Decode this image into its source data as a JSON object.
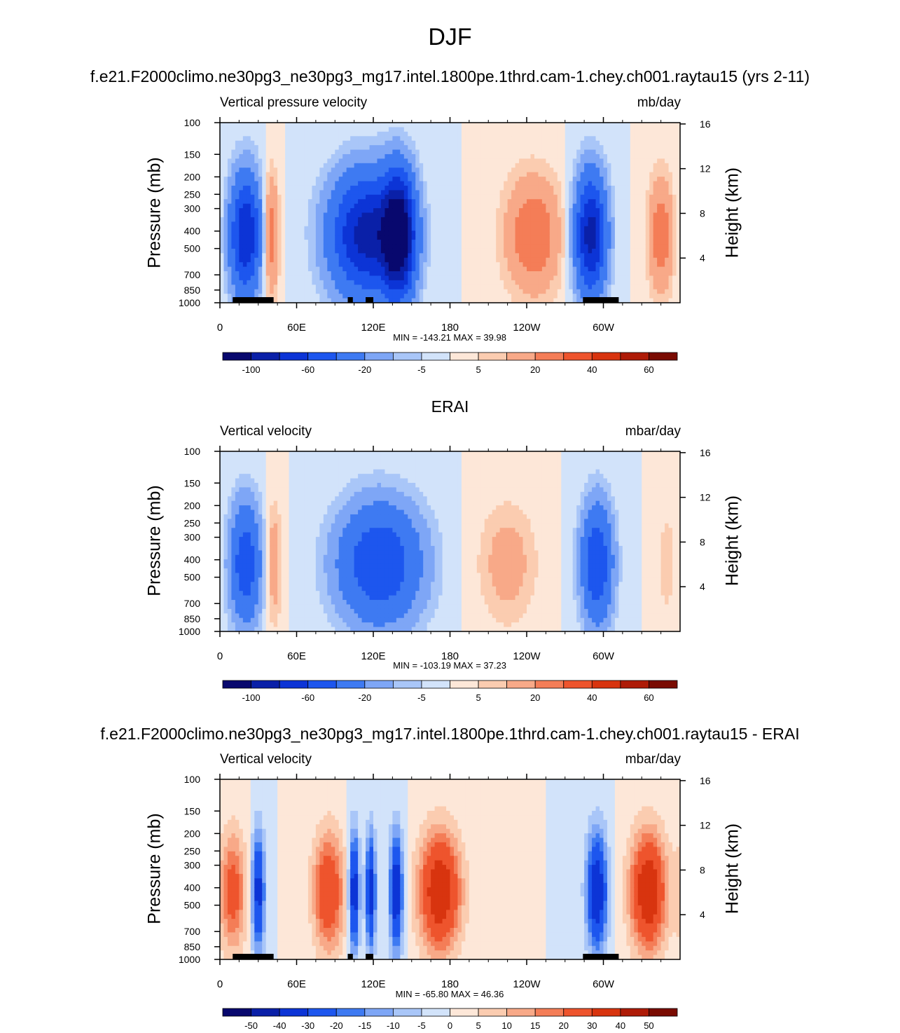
{
  "title": "DJF",
  "colors": {
    "cold": [
      "#08086e",
      "#0a20a8",
      "#0c34d6",
      "#1d56ee",
      "#3e7af2",
      "#7ea6f6",
      "#a9c6f8",
      "#d2e3fa"
    ],
    "warm": [
      "#fde7d8",
      "#fbccb0",
      "#f8a988",
      "#f47d57",
      "#ee542d",
      "#d8340f",
      "#ae1b07",
      "#7a0b02"
    ],
    "land": "#000000"
  },
  "chart_data": [
    {
      "type": "heatmap",
      "panel_title": "f.e21.F2000climo.ne30pg3_ne30pg3_mg17.intel.1800pe.1thrd.cam-1.chey.ch001.raytau15 (yrs 2-11)",
      "left_label": "Vertical pressure velocity",
      "units": "mb/day",
      "ylabel": "Pressure (mb)",
      "ylabel_right": "Height (km)",
      "x_ticks": [
        "0",
        "60E",
        "120E",
        "180",
        "120W",
        "60W"
      ],
      "y_ticks": [
        "100",
        "150",
        "200",
        "250",
        "300",
        "400",
        "500",
        "700",
        "850",
        "1000"
      ],
      "y_ticks_right": [
        "16",
        "12",
        "8",
        "4"
      ],
      "y_scale": "log",
      "xlim": [
        0,
        360
      ],
      "ylim": [
        1000,
        100
      ],
      "stats": "MIN = -143.21  MAX =  39.98",
      "colorbar_labels": [
        "-100",
        "-60",
        "-20",
        "-5",
        "5",
        "20",
        "40",
        "60"
      ],
      "features": [
        {
          "lon": 20,
          "width": 12,
          "peak": -80
        },
        {
          "lon": 40,
          "width": 6,
          "peak": 30
        },
        {
          "lon": 115,
          "width": 28,
          "peak": -90
        },
        {
          "lon": 140,
          "width": 12,
          "peak": -110
        },
        {
          "lon": 245,
          "width": 22,
          "peak": 30
        },
        {
          "lon": 290,
          "width": 12,
          "peak": -90
        },
        {
          "lon": 345,
          "width": 10,
          "peak": 28
        }
      ]
    },
    {
      "type": "heatmap",
      "panel_title": "ERAI",
      "left_label": "Vertical velocity",
      "units": "mbar/day",
      "ylabel": "Pressure (mb)",
      "ylabel_right": "Height (km)",
      "x_ticks": [
        "0",
        "60E",
        "120E",
        "180",
        "120W",
        "60W"
      ],
      "y_ticks": [
        "100",
        "150",
        "200",
        "250",
        "300",
        "400",
        "500",
        "700",
        "850",
        "1000"
      ],
      "y_ticks_right": [
        "16",
        "12",
        "8",
        "4"
      ],
      "y_scale": "log",
      "xlim": [
        0,
        360
      ],
      "ylim": [
        1000,
        100
      ],
      "stats": "MIN = -103.19  MAX =  37.23",
      "colorbar_labels": [
        "-100",
        "-60",
        "-20",
        "-5",
        "5",
        "20",
        "40",
        "60"
      ],
      "features": [
        {
          "lon": 20,
          "width": 12,
          "peak": -55
        },
        {
          "lon": 42,
          "width": 6,
          "peak": 18
        },
        {
          "lon": 125,
          "width": 32,
          "peak": -60
        },
        {
          "lon": 225,
          "width": 22,
          "peak": 15
        },
        {
          "lon": 295,
          "width": 12,
          "peak": -60
        },
        {
          "lon": 350,
          "width": 8,
          "peak": 8
        }
      ]
    },
    {
      "type": "heatmap",
      "panel_title": "f.e21.F2000climo.ne30pg3_ne30pg3_mg17.intel.1800pe.1thrd.cam-1.chey.ch001.raytau15 - ERAI",
      "left_label": "Vertical velocity",
      "units": "mbar/day",
      "ylabel": "Pressure (mb)",
      "ylabel_right": "Height (km)",
      "x_ticks": [
        "0",
        "60E",
        "120E",
        "180",
        "120W",
        "60W"
      ],
      "y_ticks": [
        "100",
        "150",
        "200",
        "250",
        "300",
        "400",
        "500",
        "700",
        "850",
        "1000"
      ],
      "y_ticks_right": [
        "16",
        "12",
        "8",
        "4"
      ],
      "y_scale": "log",
      "xlim": [
        0,
        360
      ],
      "ylim": [
        1000,
        100
      ],
      "stats": "MIN = -65.80  MAX =  46.36",
      "colorbar_labels": [
        "-50",
        "-40",
        "-30",
        "-20",
        "-15",
        "-10",
        "-5",
        "0",
        "5",
        "10",
        "15",
        "20",
        "30",
        "40",
        "50"
      ],
      "features": [
        {
          "lon": 10,
          "width": 10,
          "peak": 25
        },
        {
          "lon": 30,
          "width": 5,
          "peak": -35
        },
        {
          "lon": 85,
          "width": 12,
          "peak": 30
        },
        {
          "lon": 105,
          "width": 4,
          "peak": -40
        },
        {
          "lon": 118,
          "width": 4,
          "peak": -35
        },
        {
          "lon": 138,
          "width": 5,
          "peak": -40
        },
        {
          "lon": 172,
          "width": 16,
          "peak": 40
        },
        {
          "lon": 295,
          "width": 8,
          "peak": -40
        },
        {
          "lon": 335,
          "width": 14,
          "peak": 40
        }
      ]
    }
  ]
}
